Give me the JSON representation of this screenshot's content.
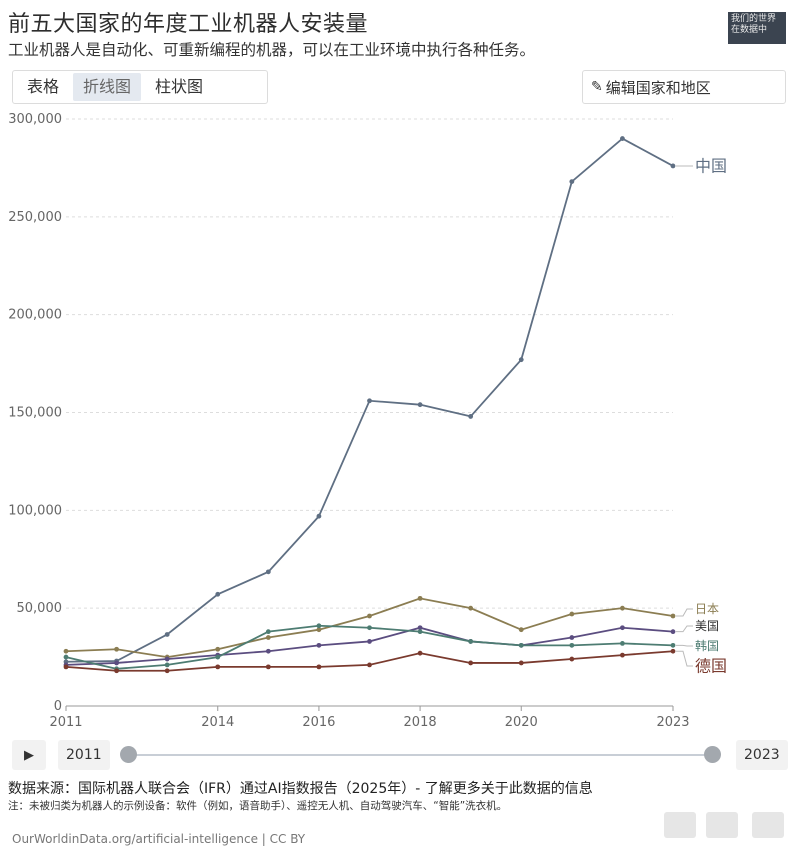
{
  "header": {
    "title": "前五大国家的年度工业机器人安装量",
    "subtitle": "工业机器人是自动化、可重新编程的机器，可以在工业环境中执行各种任务。",
    "logo_text": "我们的世界在数据中"
  },
  "tabs": [
    {
      "label": "表格",
      "active": false
    },
    {
      "label": "折线图",
      "active": true
    },
    {
      "label": "柱状图",
      "active": false
    }
  ],
  "edit_button": {
    "label": "编辑国家和地区",
    "icon": "pencil-icon"
  },
  "chart_data": {
    "type": "line",
    "x": [
      2011,
      2012,
      2013,
      2014,
      2015,
      2016,
      2017,
      2018,
      2019,
      2020,
      2021,
      2022,
      2023
    ],
    "xticks": [
      "2011",
      "2014",
      "2016",
      "2018",
      "2020",
      "2023"
    ],
    "yticks": [
      "0",
      "50,000",
      "100,000",
      "150,000",
      "200,000",
      "250,000",
      "300,000"
    ],
    "ylim": [
      0,
      300000
    ],
    "grid": true,
    "series": [
      {
        "name": "中国",
        "color": "#5f6f83",
        "values": [
          22600,
          23000,
          36560,
          57096,
          68556,
          97000,
          156000,
          154000,
          148000,
          177000,
          268000,
          290000,
          276000
        ]
      },
      {
        "name": "日本",
        "color": "#8b7d52",
        "values": [
          28000,
          29000,
          25000,
          29000,
          35000,
          39000,
          46000,
          55000,
          50000,
          39000,
          47000,
          50000,
          46000
        ]
      },
      {
        "name": "美国",
        "color": "#5b4d80",
        "values": [
          21000,
          22000,
          24000,
          26000,
          28000,
          31000,
          33000,
          40000,
          33000,
          31000,
          35000,
          40000,
          38000
        ]
      },
      {
        "name": "韩国",
        "color": "#4d7c72",
        "values": [
          25000,
          19000,
          21000,
          25000,
          38000,
          41000,
          40000,
          38000,
          33000,
          31000,
          31000,
          32000,
          31000
        ]
      },
      {
        "name": "德国",
        "color": "#7a3a2e",
        "values": [
          20000,
          18000,
          18000,
          20000,
          20000,
          20000,
          21000,
          27000,
          22000,
          22000,
          24000,
          26000,
          28000
        ]
      }
    ]
  },
  "timeline": {
    "play_icon": "play-icon",
    "start_year": "2011",
    "end_year": "2023"
  },
  "footer": {
    "source": "数据来源：国际机器人联合会（IFR）通过AI指数报告（2025年）- 了解更多关于此数据的信息",
    "note": "注：未被归类为机器人的示例设备：软件（例如，语音助手）、遥控无人机、自动驾驶汽车、“智能”洗衣机。",
    "credit": "OurWorldinData.org/artificial-intelligence | CC BY"
  }
}
